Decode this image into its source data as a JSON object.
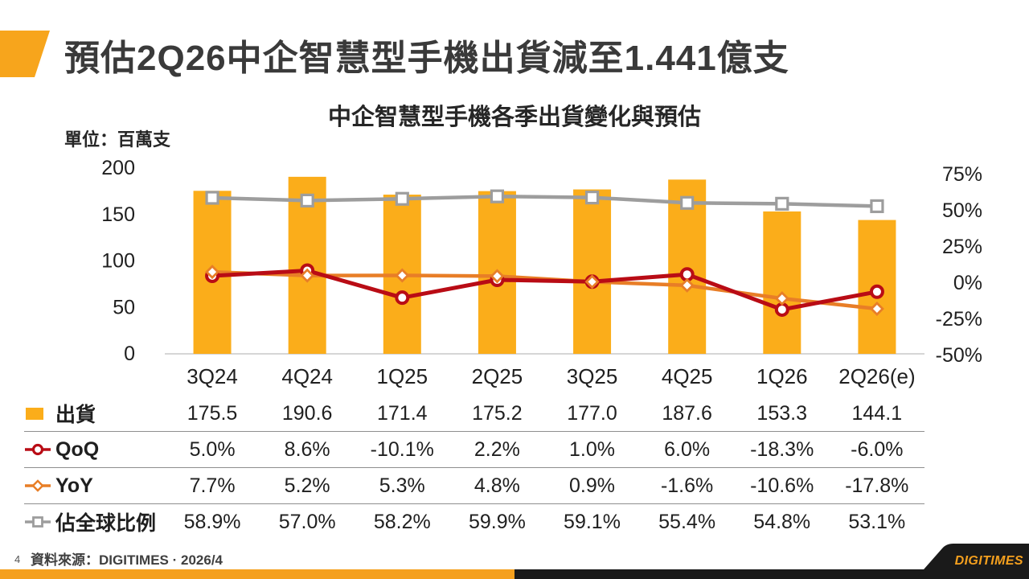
{
  "header": {
    "title": "預估2Q26中企智慧型手機出貨減至1.441億支",
    "accent_color": "#F7A51C"
  },
  "chart_data": {
    "type": "bar",
    "subtype": "bar-line-combo",
    "title": "中企智慧型手機各季出貨變化與預估",
    "unit_label": "單位：百萬支",
    "categories": [
      "3Q24",
      "4Q24",
      "1Q25",
      "2Q25",
      "3Q25",
      "4Q25",
      "1Q26",
      "2Q26(e)"
    ],
    "series": [
      {
        "key": "shipments",
        "label": "出貨",
        "type": "bar",
        "axis": "left",
        "marker": "square-filled",
        "color": "#FBAD1A",
        "format": "number",
        "values": [
          175.5,
          190.6,
          171.4,
          175.2,
          177.0,
          187.6,
          153.3,
          144.1
        ]
      },
      {
        "key": "qoq",
        "label": "QoQ",
        "type": "line",
        "axis": "right",
        "marker": "circle",
        "color": "#B90C15",
        "format": "percent",
        "values": [
          5.0,
          8.6,
          -10.1,
          2.2,
          1.0,
          6.0,
          -18.3,
          -6.0
        ]
      },
      {
        "key": "yoy",
        "label": "YoY",
        "type": "line",
        "axis": "right",
        "marker": "diamond",
        "color": "#E87E27",
        "format": "percent",
        "values": [
          7.7,
          5.2,
          5.3,
          4.8,
          0.9,
          -1.6,
          -10.6,
          -17.8
        ]
      },
      {
        "key": "global_share",
        "label": "佔全球比例",
        "type": "line",
        "axis": "right",
        "marker": "square",
        "color": "#9D9D9D",
        "format": "percent",
        "values": [
          58.9,
          57.0,
          58.2,
          59.9,
          59.1,
          55.4,
          54.8,
          53.1
        ]
      }
    ],
    "left_axis": {
      "ticks": [
        0,
        50,
        100,
        150,
        200
      ],
      "range": [
        0,
        200
      ]
    },
    "right_axis": {
      "ticks": [
        -50,
        -25,
        0,
        25,
        50,
        75
      ],
      "suffix": "%",
      "range": [
        -50,
        75
      ]
    },
    "grid": false,
    "legend_position": "table-left"
  },
  "footer": {
    "page_number": "4",
    "source": "資料來源：DIGITIMES · 2026/4",
    "logo_text": "DIGITIMES",
    "strip_orange_color": "#F5A01E",
    "strip_black_color": "#1A1A1A",
    "logo_text_color": "#F5A01E"
  }
}
